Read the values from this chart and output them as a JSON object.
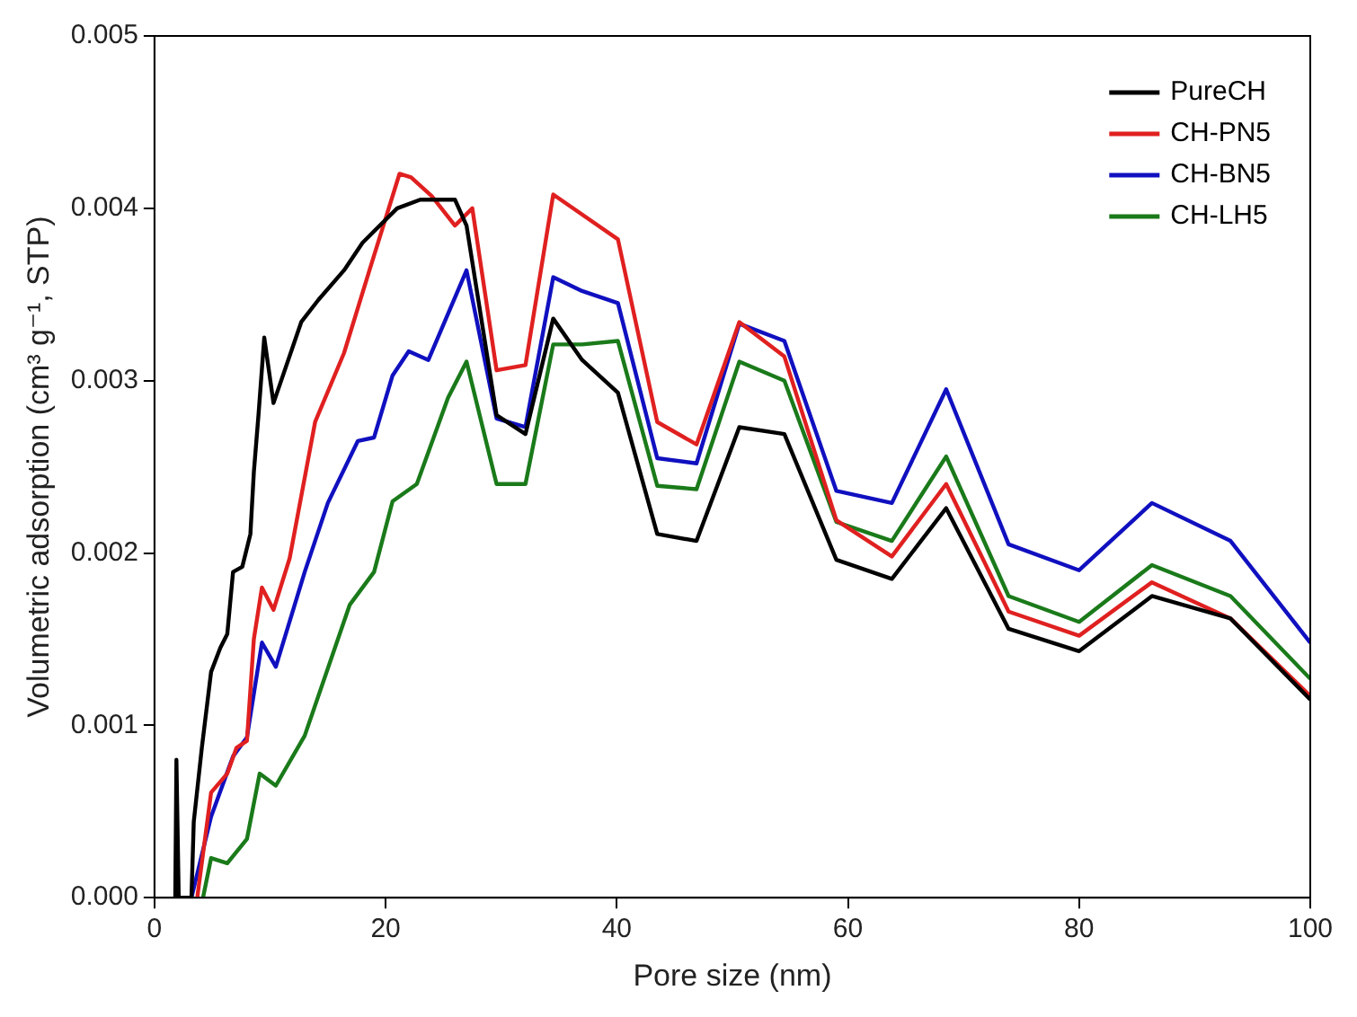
{
  "chart_data": {
    "type": "line",
    "xlabel": "Pore size (nm)",
    "ylabel": "Volumetric adsorption (cm³ g⁻¹, STP)",
    "xlim": [
      0,
      100
    ],
    "ylim": [
      0,
      0.005
    ],
    "xticks": [
      0,
      20,
      40,
      60,
      80,
      100
    ],
    "yticks": [
      {
        "value": 0,
        "label": "0.000"
      },
      {
        "value": 0.001,
        "label": "0.001"
      },
      {
        "value": 0.002,
        "label": "0.002"
      },
      {
        "value": 0.003,
        "label": "0.003"
      },
      {
        "value": 0.004,
        "label": "0.004"
      },
      {
        "value": 0.005,
        "label": "0.005"
      }
    ],
    "grid": false,
    "legend": "top right",
    "marker": "none",
    "line_style": "solid",
    "series": [
      {
        "name": "PureCH",
        "color": "#000000",
        "x": [
          1.8,
          1.9,
          2.1,
          3.2,
          3.4,
          4.1,
          4.9,
          5.7,
          6.3,
          6.8,
          7.6,
          8.3,
          8.6,
          9,
          9.5,
          10.3,
          12.7,
          14.2,
          16.4,
          18,
          21,
          23,
          26,
          27,
          29.6,
          32.1,
          34.5,
          37,
          40.1,
          43.5,
          46.9,
          50.6,
          54.5,
          59,
          63.8,
          68.5,
          73.9,
          80,
          86.3,
          93.1,
          100
        ],
        "values": [
          0,
          0.0008,
          0,
          0,
          0.00044,
          0.00087,
          0.00131,
          0.00145,
          0.00153,
          0.00189,
          0.00192,
          0.00211,
          0.00247,
          0.0028,
          0.00325,
          0.00287,
          0.00334,
          0.00347,
          0.00364,
          0.0038,
          0.004,
          0.00405,
          0.00405,
          0.0039,
          0.0028,
          0.00269,
          0.00336,
          0.00312,
          0.00293,
          0.00211,
          0.00207,
          0.00273,
          0.00269,
          0.00196,
          0.00185,
          0.00226,
          0.00156,
          0.00143,
          0.00175,
          0.00162,
          0.00115
        ]
      },
      {
        "name": "CH-PN5",
        "color": "#e02020",
        "x": [
          3.7,
          4.9,
          6.3,
          7.1,
          8,
          8.6,
          9.3,
          10.3,
          11.7,
          13.9,
          16.4,
          18.6,
          21.2,
          22.2,
          24,
          26,
          27.5,
          29.6,
          32.1,
          34.5,
          40.1,
          43.5,
          46.9,
          50.6,
          54.5,
          59,
          63.8,
          68.5,
          73.9,
          80,
          86.3,
          93.1,
          100
        ],
        "values": [
          0,
          0.00061,
          0.00072,
          0.00087,
          0.00091,
          0.0015,
          0.0018,
          0.00167,
          0.00197,
          0.00276,
          0.00316,
          0.00364,
          0.0042,
          0.00418,
          0.00407,
          0.0039,
          0.004,
          0.00306,
          0.00309,
          0.00408,
          0.00382,
          0.00276,
          0.00263,
          0.00334,
          0.00314,
          0.00219,
          0.00198,
          0.0024,
          0.00166,
          0.00152,
          0.00183,
          0.00162,
          0.00117
        ]
      },
      {
        "name": "CH-BN5",
        "color": "#1010c0",
        "x": [
          3.2,
          4.9,
          6.8,
          8,
          9.3,
          10.5,
          13,
          15,
          17.6,
          19,
          20.6,
          22,
          23.7,
          27,
          29.6,
          32.1,
          34.5,
          37,
          40.1,
          43.5,
          46.9,
          50.6,
          54.5,
          59,
          63.8,
          68.5,
          73.9,
          80,
          86.3,
          93.1,
          100
        ],
        "values": [
          0,
          0.00047,
          0.00082,
          0.00093,
          0.00148,
          0.00134,
          0.00189,
          0.00229,
          0.00265,
          0.00267,
          0.00303,
          0.00317,
          0.00312,
          0.00364,
          0.00278,
          0.00273,
          0.0036,
          0.00352,
          0.00345,
          0.00255,
          0.00252,
          0.00333,
          0.00323,
          0.00236,
          0.00229,
          0.00295,
          0.00205,
          0.0019,
          0.00229,
          0.00207,
          0.00148
        ]
      },
      {
        "name": "CH-LH5",
        "color": "#1a7a1a",
        "x": [
          4.2,
          4.9,
          6.3,
          8,
          9.1,
          10.5,
          13,
          16.9,
          19,
          20.6,
          22.7,
          25.4,
          27,
          29.6,
          32.1,
          34.5,
          37,
          40.1,
          43.5,
          46.9,
          50.6,
          54.5,
          59,
          63.8,
          68.5,
          73.9,
          80,
          86.3,
          93.1,
          100
        ],
        "values": [
          0,
          0.00023,
          0.0002,
          0.00034,
          0.00072,
          0.00065,
          0.00094,
          0.0017,
          0.00189,
          0.0023,
          0.0024,
          0.0029,
          0.00311,
          0.0024,
          0.0024,
          0.00321,
          0.00321,
          0.00323,
          0.00239,
          0.00237,
          0.00311,
          0.003,
          0.00218,
          0.00207,
          0.00256,
          0.00175,
          0.0016,
          0.00193,
          0.00175,
          0.00127
        ]
      }
    ]
  }
}
